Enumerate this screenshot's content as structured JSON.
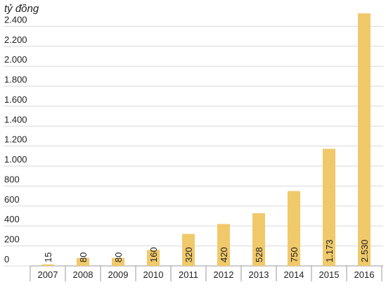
{
  "chart_data": {
    "type": "bar",
    "ylabel": "tỷ đồng",
    "categories": [
      "2007",
      "2008",
      "2009",
      "2010",
      "2011",
      "2012",
      "2013",
      "2014",
      "2015",
      "2016"
    ],
    "values": [
      15,
      80,
      80,
      160,
      320,
      420,
      528,
      750,
      1173,
      2530
    ],
    "value_labels": [
      "15",
      "80",
      "80",
      "160",
      "320",
      "420",
      "528",
      "750",
      "1.173",
      "2.530"
    ],
    "color": "#f0c96a",
    "ylim": [
      0,
      2600
    ],
    "yticks": [
      0,
      200,
      400,
      600,
      800,
      {
        "value": 1000,
        "label": "1.000"
      },
      {
        "value": 1200,
        "label": "1.200"
      },
      {
        "value": 1400,
        "label": "1.400"
      },
      {
        "value": 1600,
        "label": "1.600"
      },
      {
        "value": 1800,
        "label": "1.800"
      },
      {
        "value": 2000,
        "label": "2.000"
      },
      {
        "value": 2200,
        "label": "2.200"
      },
      {
        "value": 2400,
        "label": "2.400"
      }
    ],
    "grid": true
  }
}
